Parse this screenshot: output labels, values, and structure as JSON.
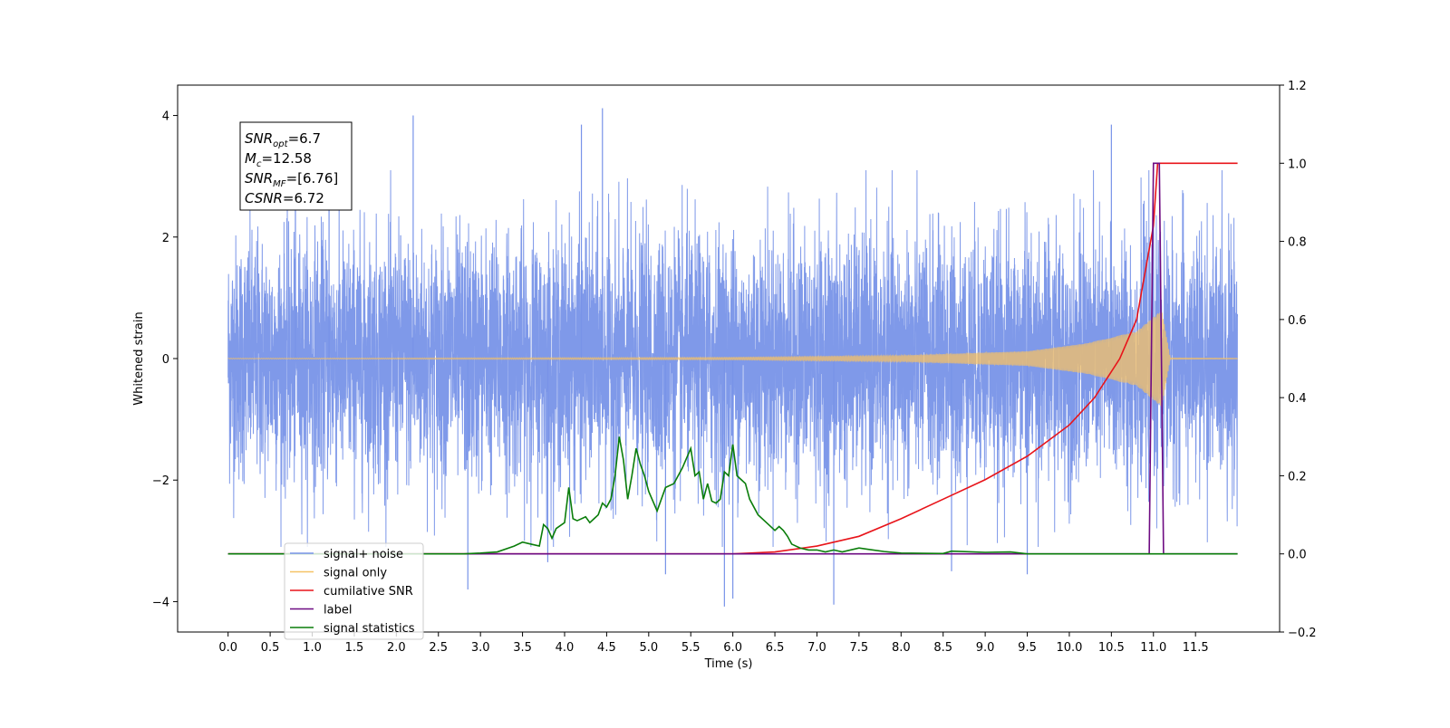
{
  "chart_data": {
    "type": "line",
    "xlabel": "Time (s)",
    "ylabel": "Whitened strain",
    "xlim": [
      -0.6,
      12.5
    ],
    "ylim": [
      -4.5,
      4.5
    ],
    "y2lim": [
      -0.2,
      1.2
    ],
    "x_ticks": [
      0.0,
      0.5,
      1.0,
      1.5,
      2.0,
      2.5,
      3.0,
      3.5,
      4.0,
      4.5,
      5.0,
      5.5,
      6.0,
      6.5,
      7.0,
      7.5,
      8.0,
      8.5,
      9.0,
      9.5,
      10.0,
      10.5,
      11.0,
      11.5
    ],
    "x_tick_labels": [
      "0.0",
      "0.5",
      "1.0",
      "1.5",
      "2.0",
      "2.5",
      "3.0",
      "3.5",
      "4.0",
      "4.5",
      "5.0",
      "5.5",
      "6.0",
      "6.5",
      "7.0",
      "7.5",
      "8.0",
      "8.5",
      "9.0",
      "9.5",
      "10.0",
      "10.5",
      "11.0",
      "11.5"
    ],
    "y_ticks": [
      -4,
      -2,
      0,
      2,
      4
    ],
    "y_tick_labels": [
      "−4",
      "−2",
      "0",
      "2",
      "4"
    ],
    "y2_ticks": [
      -0.2,
      0.0,
      0.2,
      0.4,
      0.6,
      0.8,
      1.0,
      1.2
    ],
    "y2_tick_labels": [
      "−0.2",
      "0.0",
      "0.2",
      "0.4",
      "0.6",
      "0.8",
      "1.0",
      "1.2"
    ],
    "legend_position": "lower-left",
    "stats": [
      {
        "base": "SNR",
        "sub": "opt",
        "value": "=6.7"
      },
      {
        "base": "M",
        "sub": "c",
        "value": "=12.58"
      },
      {
        "base": "SNR",
        "sub": "MF",
        "value": "=[6.76]"
      },
      {
        "base": "CSNR",
        "sub": "",
        "value": "=6.72"
      }
    ],
    "series": [
      {
        "name": "signal+ noise",
        "color": "#7893e8",
        "axis": "left",
        "style": "noise",
        "noise_std": 1.0,
        "x_range": [
          0.0,
          12.0
        ],
        "spikes": [
          [
            0.8,
            3.4
          ],
          [
            1.2,
            3.2
          ],
          [
            2.2,
            4.0
          ],
          [
            2.85,
            -3.8
          ],
          [
            3.8,
            -3.35
          ],
          [
            4.2,
            3.85
          ],
          [
            4.45,
            4.12
          ],
          [
            5.2,
            -3.55
          ],
          [
            5.9,
            -4.08
          ],
          [
            6.0,
            -3.95
          ],
          [
            7.2,
            -4.05
          ],
          [
            8.6,
            -3.5
          ],
          [
            9.5,
            -3.55
          ],
          [
            10.5,
            3.85
          ]
        ]
      },
      {
        "name": "signal only",
        "color": "#f5c266",
        "axis": "left",
        "style": "chirp",
        "x_range": [
          0.0,
          12.0
        ],
        "envelope": [
          [
            0.0,
            0.005
          ],
          [
            6.0,
            0.02
          ],
          [
            8.0,
            0.05
          ],
          [
            9.5,
            0.12
          ],
          [
            10.2,
            0.25
          ],
          [
            10.8,
            0.45
          ],
          [
            11.1,
            0.8
          ],
          [
            11.2,
            0.01
          ],
          [
            12.0,
            0.005
          ]
        ]
      },
      {
        "name": "cumilative SNR",
        "color": "#e8141a",
        "axis": "right",
        "x": [
          0.0,
          6.0,
          6.5,
          7.0,
          7.5,
          8.0,
          8.5,
          9.0,
          9.5,
          10.0,
          10.3,
          10.6,
          10.8,
          11.0,
          11.05,
          11.1,
          12.0
        ],
        "values": [
          0.0,
          0.0,
          0.005,
          0.02,
          0.045,
          0.09,
          0.14,
          0.19,
          0.25,
          0.33,
          0.4,
          0.5,
          0.6,
          0.84,
          1.0,
          1.0,
          1.0
        ]
      },
      {
        "name": "label",
        "color": "#6e0b82",
        "axis": "right",
        "x": [
          0.0,
          10.95,
          11.0,
          11.05,
          11.07,
          11.12,
          12.0
        ],
        "values": [
          0.0,
          0.0,
          1.0,
          1.0,
          1.0,
          0.0,
          0.0
        ]
      },
      {
        "name": "signal statistics",
        "color": "#0a7d0a",
        "axis": "right",
        "x": [
          0.0,
          2.8,
          3.0,
          3.2,
          3.4,
          3.5,
          3.6,
          3.7,
          3.75,
          3.8,
          3.85,
          3.9,
          4.0,
          4.05,
          4.1,
          4.15,
          4.25,
          4.3,
          4.35,
          4.4,
          4.45,
          4.5,
          4.55,
          4.6,
          4.65,
          4.7,
          4.75,
          4.8,
          4.85,
          4.9,
          4.95,
          5.0,
          5.1,
          5.2,
          5.3,
          5.4,
          5.5,
          5.55,
          5.6,
          5.65,
          5.7,
          5.75,
          5.8,
          5.85,
          5.9,
          5.95,
          6.0,
          6.05,
          6.1,
          6.15,
          6.2,
          6.25,
          6.3,
          6.4,
          6.5,
          6.55,
          6.6,
          6.65,
          6.7,
          6.8,
          6.9,
          7.0,
          7.1,
          7.2,
          7.3,
          7.5,
          7.6,
          7.8,
          8.0,
          8.5,
          8.6,
          9.0,
          9.3,
          9.5,
          10.0,
          11.0,
          11.1,
          12.0
        ],
        "values": [
          0.0,
          0.0,
          0.002,
          0.005,
          0.02,
          0.03,
          0.025,
          0.02,
          0.075,
          0.065,
          0.04,
          0.065,
          0.08,
          0.17,
          0.09,
          0.085,
          0.095,
          0.08,
          0.09,
          0.1,
          0.13,
          0.12,
          0.14,
          0.2,
          0.3,
          0.24,
          0.14,
          0.2,
          0.27,
          0.23,
          0.2,
          0.16,
          0.11,
          0.17,
          0.18,
          0.22,
          0.27,
          0.2,
          0.21,
          0.14,
          0.18,
          0.135,
          0.13,
          0.14,
          0.21,
          0.2,
          0.28,
          0.2,
          0.19,
          0.18,
          0.14,
          0.12,
          0.1,
          0.08,
          0.06,
          0.07,
          0.06,
          0.045,
          0.025,
          0.015,
          0.01,
          0.01,
          0.005,
          0.01,
          0.005,
          0.015,
          0.012,
          0.006,
          0.002,
          0.001,
          0.007,
          0.004,
          0.005,
          0.0,
          0.0,
          0.0,
          0.0,
          0.0
        ]
      }
    ]
  }
}
